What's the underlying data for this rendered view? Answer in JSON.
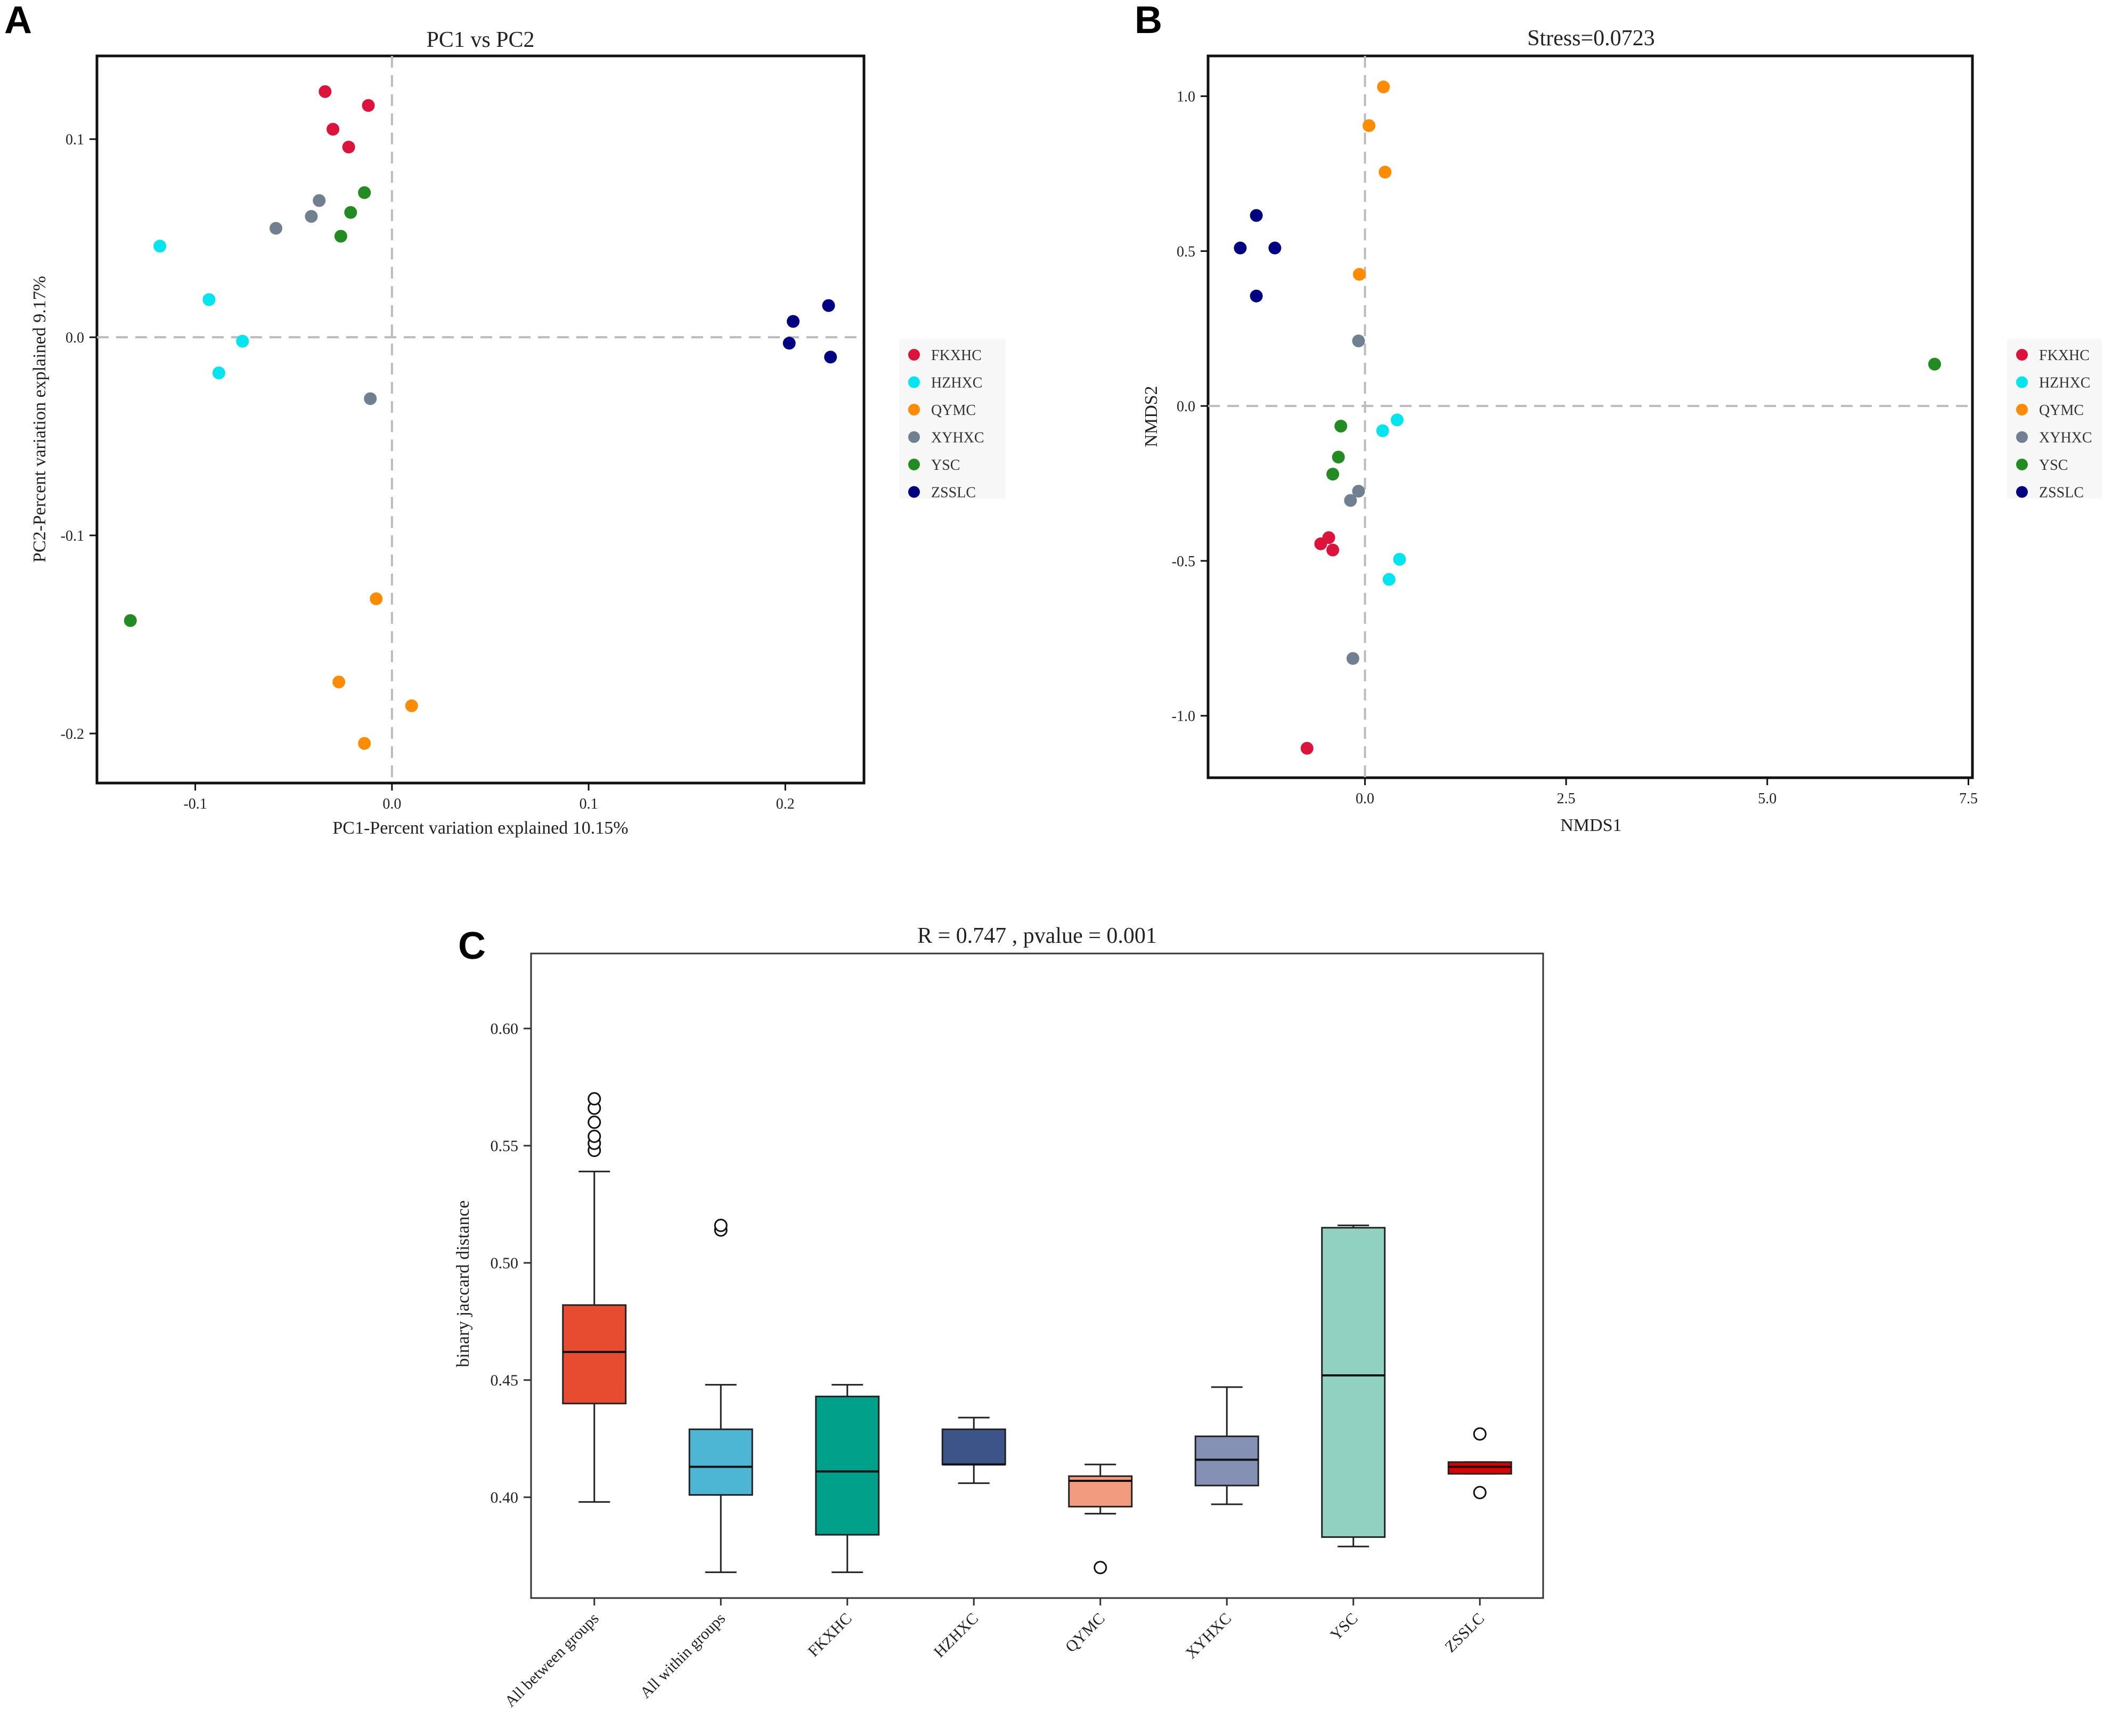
{
  "colors": {
    "FKXHC": "#dc143c",
    "HZHXC": "#00e5ee",
    "QYMC": "#ff8c00",
    "XYHXC": "#708090",
    "YSC": "#228b22",
    "ZSSLC": "#000080"
  },
  "legend_groups": [
    "FKXHC",
    "HZHXC",
    "QYMC",
    "XYHXC",
    "YSC",
    "ZSSLC"
  ],
  "chart_data": [
    {
      "panel": "A",
      "type": "scatter",
      "title": "PC1 vs PC2",
      "xlabel": "PC1-Percent variation explained 10.15%",
      "ylabel": "PC2-Percent variation explained 9.17%",
      "xlim": [
        -0.15,
        0.24
      ],
      "ylim": [
        -0.225,
        0.142
      ],
      "xticks": [
        -0.1,
        0.0,
        0.1,
        0.2
      ],
      "xtick_labels": [
        "-0.1",
        "0.0",
        "0.1",
        "0.2"
      ],
      "yticks": [
        0.1,
        0.0,
        -0.1,
        -0.2
      ],
      "ytick_labels": [
        "0.1",
        "0.0",
        "-0.1",
        "-0.2"
      ],
      "series": [
        {
          "name": "FKXHC",
          "x": [
            -0.034,
            -0.012,
            -0.03,
            -0.022
          ],
          "y": [
            0.124,
            0.117,
            0.105,
            0.096
          ]
        },
        {
          "name": "HZHXC",
          "x": [
            -0.118,
            -0.093,
            -0.076,
            -0.088
          ],
          "y": [
            0.046,
            0.019,
            -0.002,
            -0.018
          ]
        },
        {
          "name": "QYMC",
          "x": [
            -0.008,
            -0.027,
            0.01,
            -0.014
          ],
          "y": [
            -0.132,
            -0.174,
            -0.186,
            -0.205
          ]
        },
        {
          "name": "XYHXC",
          "x": [
            -0.037,
            -0.059,
            -0.041,
            -0.011
          ],
          "y": [
            0.069,
            0.055,
            0.061,
            -0.031
          ]
        },
        {
          "name": "YSC",
          "x": [
            -0.014,
            -0.021,
            -0.026,
            -0.133
          ],
          "y": [
            0.073,
            0.063,
            0.051,
            -0.143
          ]
        },
        {
          "name": "ZSSLC",
          "x": [
            0.204,
            0.222,
            0.202,
            0.223
          ],
          "y": [
            0.008,
            0.016,
            -0.003,
            -0.01
          ]
        }
      ]
    },
    {
      "panel": "B",
      "type": "scatter",
      "title": "Stress=0.0723",
      "xlabel": "NMDS1",
      "ylabel": "NMDS2",
      "xlim": [
        -1.95,
        7.55
      ],
      "ylim": [
        -1.2,
        1.13
      ],
      "xticks": [
        0.0,
        2.5,
        5.0,
        7.5
      ],
      "xtick_labels": [
        "0.0",
        "2.5",
        "5.0",
        "7.5"
      ],
      "yticks": [
        1.0,
        0.5,
        0.0,
        -0.5,
        -1.0
      ],
      "ytick_labels": [
        "1.0",
        "0.5",
        "0.0",
        "-0.5",
        "-1.0"
      ],
      "series": [
        {
          "name": "FKXHC",
          "x": [
            -0.45,
            -0.55,
            -0.4,
            -0.72
          ],
          "y": [
            -0.425,
            -0.445,
            -0.465,
            -1.105
          ]
        },
        {
          "name": "HZHXC",
          "x": [
            0.4,
            0.22,
            0.43,
            0.3
          ],
          "y": [
            -0.045,
            -0.08,
            -0.495,
            -0.56
          ]
        },
        {
          "name": "QYMC",
          "x": [
            0.23,
            0.05,
            0.25,
            -0.07
          ],
          "y": [
            1.03,
            0.905,
            0.755,
            0.425
          ]
        },
        {
          "name": "XYHXC",
          "x": [
            -0.08,
            -0.08,
            -0.18,
            -0.15
          ],
          "y": [
            0.21,
            -0.275,
            -0.305,
            -0.815
          ]
        },
        {
          "name": "YSC",
          "x": [
            7.08,
            -0.3,
            -0.33,
            -0.4
          ],
          "y": [
            0.135,
            -0.065,
            -0.165,
            -0.22
          ]
        },
        {
          "name": "ZSSLC",
          "x": [
            -1.35,
            -1.55,
            -1.12,
            -1.35
          ],
          "y": [
            0.615,
            0.51,
            0.51,
            0.355
          ]
        }
      ]
    },
    {
      "panel": "C",
      "type": "box",
      "title": "R = 0.747 , pvalue = 0.001",
      "ylabel": "binary jaccard distance",
      "ylim": [
        0.357,
        0.632
      ],
      "yticks": [
        0.4,
        0.45,
        0.5,
        0.55,
        0.6
      ],
      "ytick_labels": [
        "0.40",
        "0.45",
        "0.50",
        "0.55",
        "0.60"
      ],
      "categories": [
        "All between groups",
        "All within groups",
        "FKXHC",
        "HZHXC",
        "QYMC",
        "XYHXC",
        "YSC",
        "ZSSLC"
      ],
      "box_colors": [
        "#e84c30",
        "#4db6d4",
        "#00a08a",
        "#3c5488",
        "#f39b7f",
        "#8491b4",
        "#91d1c2",
        "#dc0000"
      ],
      "boxes": [
        {
          "whisker_low": 0.398,
          "q1": 0.44,
          "median": 0.462,
          "q3": 0.482,
          "whisker_high": 0.539,
          "outliers": [
            0.548,
            0.551,
            0.554,
            0.56,
            0.566,
            0.57
          ]
        },
        {
          "whisker_low": 0.368,
          "q1": 0.401,
          "median": 0.413,
          "q3": 0.429,
          "whisker_high": 0.448,
          "outliers": [
            0.514,
            0.516
          ]
        },
        {
          "whisker_low": 0.368,
          "q1": 0.384,
          "median": 0.411,
          "q3": 0.443,
          "whisker_high": 0.448,
          "outliers": []
        },
        {
          "whisker_low": 0.406,
          "q1": 0.414,
          "median": 0.414,
          "q3": 0.429,
          "whisker_high": 0.434,
          "outliers": []
        },
        {
          "whisker_low": 0.393,
          "q1": 0.396,
          "median": 0.407,
          "q3": 0.409,
          "whisker_high": 0.414,
          "outliers": [
            0.37
          ]
        },
        {
          "whisker_low": 0.397,
          "q1": 0.405,
          "median": 0.416,
          "q3": 0.426,
          "whisker_high": 0.447,
          "outliers": []
        },
        {
          "whisker_low": 0.379,
          "q1": 0.383,
          "median": 0.452,
          "q3": 0.515,
          "whisker_high": 0.516,
          "outliers": []
        },
        {
          "whisker_low": 0.41,
          "q1": 0.41,
          "median": 0.413,
          "q3": 0.415,
          "whisker_high": 0.415,
          "outliers": [
            0.402,
            0.427
          ]
        }
      ]
    }
  ],
  "panel_labels": {
    "a": "A",
    "b": "B",
    "c": "C"
  }
}
